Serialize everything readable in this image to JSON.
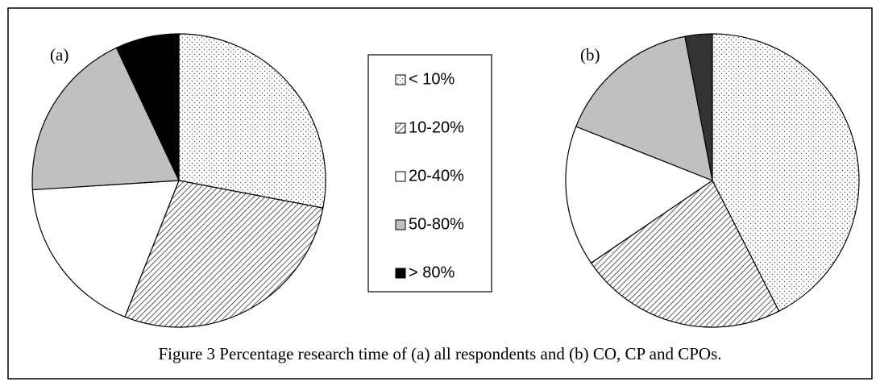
{
  "chart_data": [
    {
      "type": "pie",
      "title": "(a)",
      "values": [
        28,
        28,
        18,
        19,
        7
      ],
      "colors": [
        "#ffffff",
        "#ffffff",
        "#ffffff",
        "#c0c0c0",
        "#000000"
      ],
      "patterns": [
        "dots",
        "hatch",
        "none",
        "none",
        "none"
      ]
    },
    {
      "type": "pie",
      "title": "(b)",
      "values": [
        42.5,
        23,
        15.5,
        16,
        3
      ],
      "colors": [
        "#ffffff",
        "#ffffff",
        "#ffffff",
        "#c0c0c0",
        "#333333"
      ],
      "patterns": [
        "dots",
        "hatch",
        "none",
        "none",
        "none"
      ]
    }
  ],
  "legend": [
    "< 10%",
    "10-20%",
    "20-40%",
    "50-80%",
    "> 80%"
  ],
  "caption": "Figure 3  Percentage research time of (a) all respondents and (b) CO, CP and CPOs."
}
